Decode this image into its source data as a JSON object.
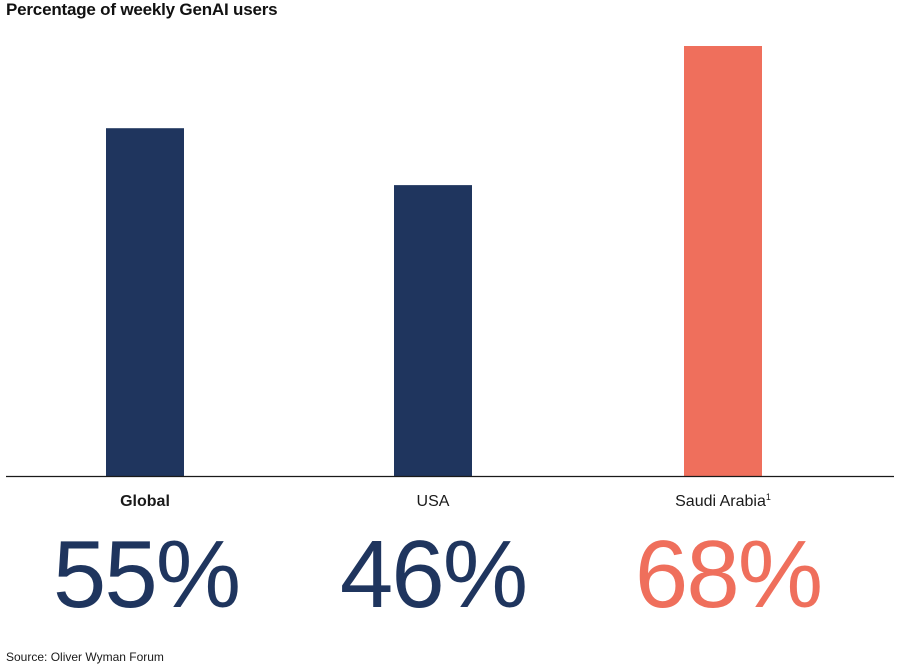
{
  "chart_data": {
    "type": "bar",
    "title": "Percentage of weekly GenAI users",
    "categories": [
      "Global",
      "USA",
      "Saudi Arabia"
    ],
    "category_footnotes": [
      "",
      "",
      "1"
    ],
    "values": [
      55,
      46,
      68
    ],
    "value_labels": [
      "55%",
      "46%",
      "68%"
    ],
    "bar_colors": [
      "#1f355e",
      "#1f355e",
      "#ef6f5c"
    ],
    "ylim": [
      0,
      68
    ],
    "grid": false,
    "legend": "none"
  },
  "source": "Source: Oliver Wyman Forum"
}
